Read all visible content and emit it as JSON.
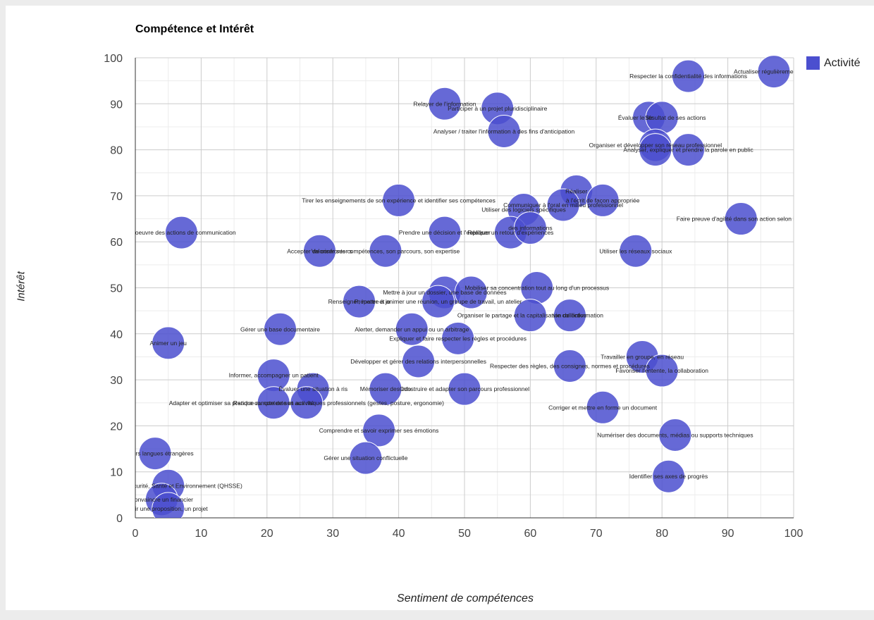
{
  "chart_data": {
    "type": "scatter",
    "title": "Compétence et Intérêt",
    "xlabel": "Sentiment de compétences",
    "ylabel": "Intérêt",
    "xlim": [
      0,
      100
    ],
    "ylim": [
      0,
      100
    ],
    "x_ticks": [
      0,
      10,
      20,
      30,
      40,
      50,
      60,
      70,
      80,
      90,
      100
    ],
    "y_ticks": [
      0,
      10,
      20,
      30,
      40,
      50,
      60,
      70,
      80,
      90,
      100
    ],
    "grid": true,
    "legend_position": "right",
    "series": [
      {
        "name": "Activité",
        "color": "#4b4fcf",
        "points": [
          {
            "x": 97,
            "y": 97,
            "label": "Actualiser régulièrement ses c"
          },
          {
            "x": 84,
            "y": 96,
            "label": "Respecter la confidentialité des informations"
          },
          {
            "x": 47,
            "y": 90,
            "label": "Relayer de l'information"
          },
          {
            "x": 55,
            "y": 89,
            "label": "Participer à un projet pluridisciplinaire"
          },
          {
            "x": 78,
            "y": 87,
            "label": "Str"
          },
          {
            "x": 80,
            "y": 87,
            "label": "Évaluer le résultat de ses actions"
          },
          {
            "x": 56,
            "y": 84,
            "label": "Analyser / traiter l'information à des fins d'anticipation"
          },
          {
            "x": 79,
            "y": 81,
            "label": "Organiser et développer son réseau professionnel"
          },
          {
            "x": 84,
            "y": 80,
            "label": "Analyser, expliquer et prendre la parole en public"
          },
          {
            "x": 79,
            "y": 80,
            "label": ""
          },
          {
            "x": 40,
            "y": 69,
            "label": "Tirer les enseignements de son expérience et identifier ses compétences"
          },
          {
            "x": 67,
            "y": 71,
            "label": "Réaliser"
          },
          {
            "x": 71,
            "y": 69,
            "label": "à l'écrit de façon appropriée"
          },
          {
            "x": 65,
            "y": 68,
            "label": "Communiquer à l'oral en milieu professionnel"
          },
          {
            "x": 59,
            "y": 67,
            "label": "Utiliser des logiciels spécifiques"
          },
          {
            "x": 92,
            "y": 65,
            "label": "Faire preuve d'agilité dans son action selon les c"
          },
          {
            "x": 7,
            "y": 62,
            "label": "en oeuvre des actions de communication"
          },
          {
            "x": 47,
            "y": 62,
            "label": "Prendre une décision et l'expliquer"
          },
          {
            "x": 57,
            "y": 62,
            "label": "Réaliser un retour d'expériences"
          },
          {
            "x": 60,
            "y": 63,
            "label": "des informations"
          },
          {
            "x": 28,
            "y": 58,
            "label": "Accepter de confronter s"
          },
          {
            "x": 38,
            "y": 58,
            "label": "Valoriser ses compétences, son parcours, son expertise"
          },
          {
            "x": 76,
            "y": 58,
            "label": "Utiliser les réseaux sociaux"
          },
          {
            "x": 61,
            "y": 50,
            "label": "Mobiliser sa concentration tout au long d'un processus"
          },
          {
            "x": 47,
            "y": 49,
            "label": "Mettre à jour un dossier, une base de données"
          },
          {
            "x": 51,
            "y": 49,
            "label": ""
          },
          {
            "x": 34,
            "y": 47,
            "label": "Renseigner, mettre à jo"
          },
          {
            "x": 46,
            "y": 47,
            "label": "Préparer et animer une réunion, un groupe de travail, un atelier"
          },
          {
            "x": 60,
            "y": 44,
            "label": "Organiser le partage et la capitalisation de l'information"
          },
          {
            "x": 66,
            "y": 44,
            "label": "vie collective"
          },
          {
            "x": 22,
            "y": 41,
            "label": "Gérer une base documentaire"
          },
          {
            "x": 42,
            "y": 41,
            "label": "Alerter, demander un appui ou un arbitrage"
          },
          {
            "x": 49,
            "y": 39,
            "label": "Expliquer et faire respecter les règles et procédures"
          },
          {
            "x": 5,
            "y": 38,
            "label": "Animer un jeu"
          },
          {
            "x": 77,
            "y": 35,
            "label": "Travailler en groupe, en réseau"
          },
          {
            "x": 43,
            "y": 34,
            "label": "Développer et gérer des relations interpersonnelles"
          },
          {
            "x": 66,
            "y": 33,
            "label": "Respecter des règles, des consignes, normes et procédures"
          },
          {
            "x": 80,
            "y": 32,
            "label": "Favoriser l'entente, la collaboration"
          },
          {
            "x": 21,
            "y": 31,
            "label": "Informer, accompagner un patient"
          },
          {
            "x": 27,
            "y": 28,
            "label": "Évaluer une situation à ris"
          },
          {
            "x": 38,
            "y": 28,
            "label": "Mémoriser des info"
          },
          {
            "x": 50,
            "y": 28,
            "label": "Construire et adapter son parcours professionnel"
          },
          {
            "x": 21,
            "y": 25,
            "label": "Rendre compte de son activité"
          },
          {
            "x": 26,
            "y": 25,
            "label": "Adapter et optimiser sa pratique au contexte et aux risques professionnels (gestes, posture, ergonomie)"
          },
          {
            "x": 71,
            "y": 24,
            "label": "Corriger et mettre en forme un document"
          },
          {
            "x": 37,
            "y": 19,
            "label": "Comprendre et savoir exprimer ses émotions"
          },
          {
            "x": 82,
            "y": 18,
            "label": "Numériser des documents, médias ou supports techniques"
          },
          {
            "x": 3,
            "y": 14,
            "label": "plusieurs langues étrangères"
          },
          {
            "x": 35,
            "y": 13,
            "label": "Gérer une situation conflictuelle"
          },
          {
            "x": 81,
            "y": 9,
            "label": "Identifier ses axes de progrès"
          },
          {
            "x": 5,
            "y": 7,
            "label": "é, Hygiène, Sécurité, Santé et Environnement (QHSSE)"
          },
          {
            "x": 4,
            "y": 4,
            "label": "Convaincre un financier"
          },
          {
            "x": 5,
            "y": 2,
            "label": "voir une proposition, un projet"
          }
        ]
      }
    ]
  }
}
